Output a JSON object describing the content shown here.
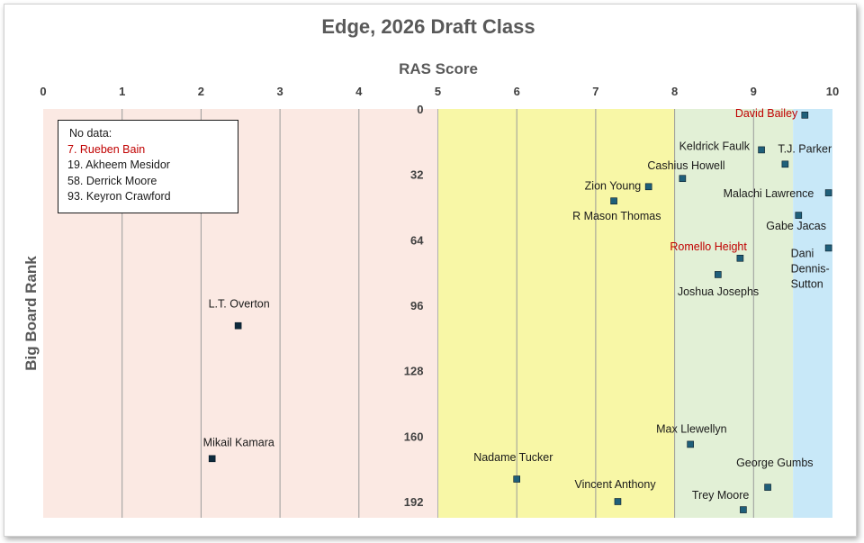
{
  "chart_data": {
    "type": "scatter",
    "title": "Edge, 2026 Draft Class",
    "xlabel": "RAS Score",
    "ylabel": "Big Board Rank",
    "xlim": [
      0,
      10
    ],
    "ylim": [
      0,
      200
    ],
    "y_inverted": true,
    "x_axis_position": "top",
    "x_ticks": [
      "0",
      "1",
      "2",
      "3",
      "4",
      "5",
      "6",
      "7",
      "8",
      "9",
      "10"
    ],
    "y_ticks": [
      "0",
      "32",
      "64",
      "96",
      "128",
      "160",
      "192"
    ],
    "grid": "vertical",
    "zones": [
      {
        "from": 0,
        "to": 5,
        "color": "#fbe9e3"
      },
      {
        "from": 5,
        "to": 8,
        "color": "#f8f7a6"
      },
      {
        "from": 8,
        "to": 9.5,
        "color": "#e2f0d6"
      },
      {
        "from": 9.5,
        "to": 10,
        "color": "#c8e8f8"
      }
    ],
    "marker_colors": {
      "zone_low": "#0d2a3d",
      "zone_high": "#1f5f7a"
    },
    "points": [
      {
        "name": "David Bailey",
        "x": 9.65,
        "y": 3,
        "highlight": true
      },
      {
        "name": "Keldrick Faulk",
        "x": 9.1,
        "y": 20
      },
      {
        "name": "T.J. Parker",
        "x": 9.4,
        "y": 27
      },
      {
        "name": "Cashius Howell",
        "x": 8.1,
        "y": 34
      },
      {
        "name": "Zion Young",
        "x": 7.67,
        "y": 38
      },
      {
        "name": "Malachi Lawrence",
        "x": 9.95,
        "y": 41
      },
      {
        "name": "R Mason Thomas",
        "x": 7.23,
        "y": 45
      },
      {
        "name": "Gabe Jacas",
        "x": 9.57,
        "y": 52
      },
      {
        "name": "Dani Dennis-Sutton",
        "x": 9.95,
        "y": 68
      },
      {
        "name": "Romello Height",
        "x": 8.83,
        "y": 73,
        "highlight": true
      },
      {
        "name": "Joshua Josephs",
        "x": 8.55,
        "y": 81
      },
      {
        "name": "L.T. Overton",
        "x": 2.47,
        "y": 106
      },
      {
        "name": "Max Llewellyn",
        "x": 8.2,
        "y": 164
      },
      {
        "name": "Mikail Kamara",
        "x": 2.14,
        "y": 171
      },
      {
        "name": "Nadame Tucker",
        "x": 6.0,
        "y": 181
      },
      {
        "name": "George Gumbs",
        "x": 9.18,
        "y": 185
      },
      {
        "name": "Vincent Anthony",
        "x": 7.28,
        "y": 192
      },
      {
        "name": "Trey Moore",
        "x": 8.87,
        "y": 196
      }
    ],
    "annotation": {
      "heading": "No data:",
      "items": [
        {
          "text": "7. Rueben Bain",
          "highlight": true
        },
        {
          "text": "19. Akheem Mesidor"
        },
        {
          "text": "58. Derrick Moore"
        },
        {
          "text": "93. Keyron Crawford"
        }
      ]
    },
    "highlight_color": "#c00000"
  }
}
